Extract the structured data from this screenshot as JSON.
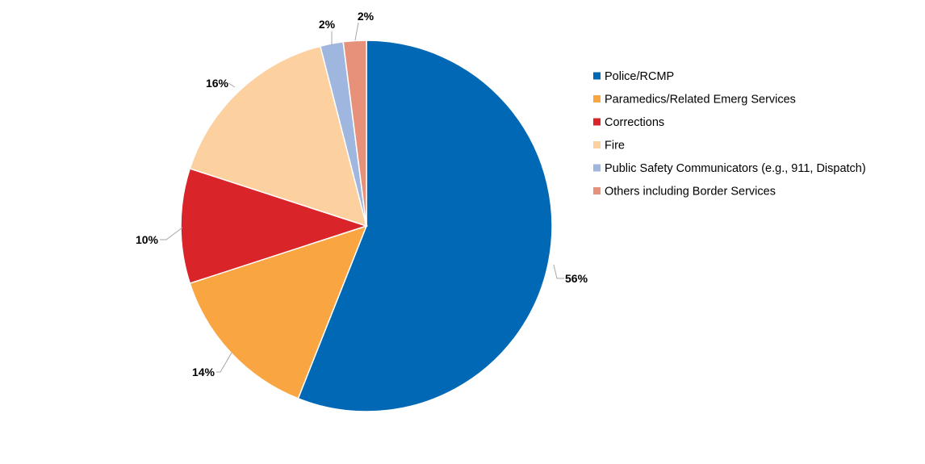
{
  "chart_data": {
    "type": "pie",
    "title": "",
    "start_angle_deg": 0,
    "direction": "clockwise",
    "legend_position": "right",
    "show_data_labels": true,
    "slices": [
      {
        "label": "Police/RCMP",
        "value": 56,
        "display": "56%",
        "color": "#0068b5"
      },
      {
        "label": "Paramedics/Related Emerg Services",
        "value": 14,
        "display": "14%",
        "color": "#f9a541"
      },
      {
        "label": "Corrections",
        "value": 10,
        "display": "10%",
        "color": "#d9252a"
      },
      {
        "label": "Fire",
        "value": 16,
        "display": "16%",
        "color": "#fdd0a0"
      },
      {
        "label": "Public Safety Communicators (e.g., 911, Dispatch)",
        "value": 2,
        "display": "2%",
        "color": "#9fb7de"
      },
      {
        "label": "Others including Border Services",
        "value": 2,
        "display": "2%",
        "color": "#e8917a"
      }
    ]
  }
}
